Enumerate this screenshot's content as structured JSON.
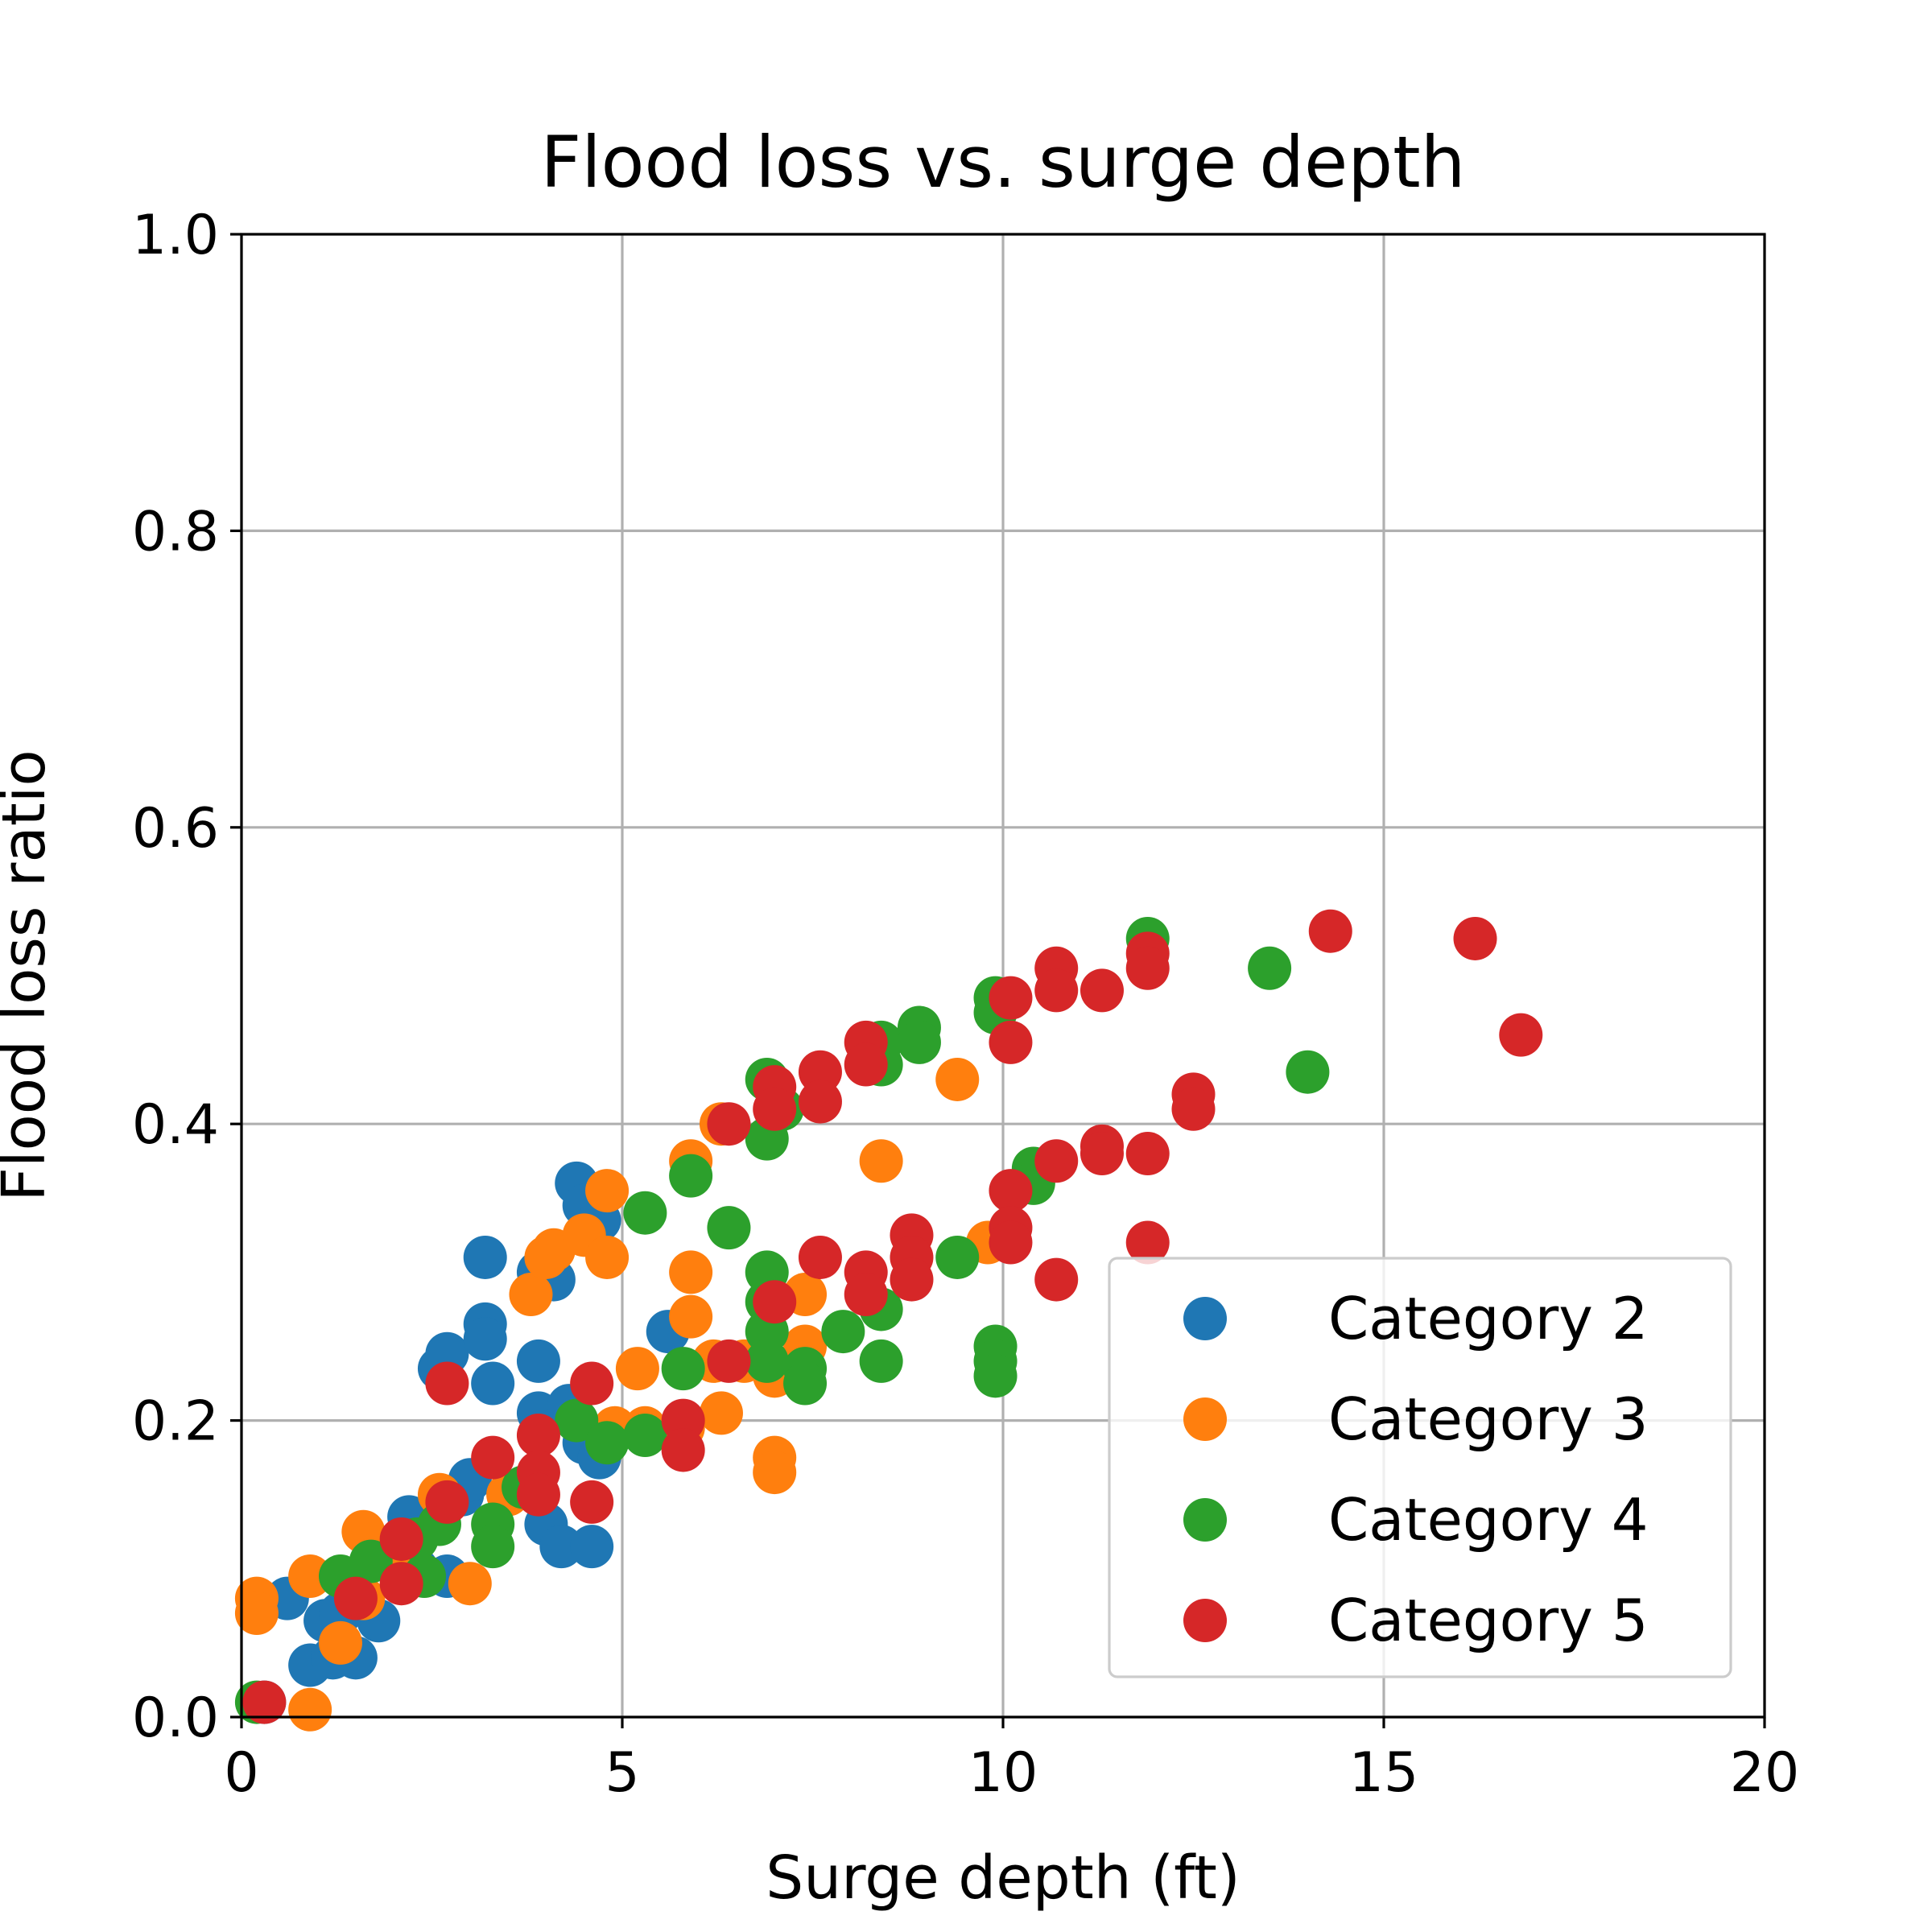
{
  "chart_data": {
    "type": "scatter",
    "title": "Flood loss vs. surge depth",
    "xlabel": "Surge depth (ft)",
    "ylabel": "Flood loss ratio",
    "xlim": [
      0,
      20
    ],
    "ylim": [
      0,
      1
    ],
    "xticks": [
      0,
      5,
      10,
      15,
      20
    ],
    "yticks": [
      0.0,
      0.2,
      0.4,
      0.6,
      0.8,
      1.0
    ],
    "xtick_labels": [
      "0",
      "5",
      "10",
      "15",
      "20"
    ],
    "ytick_labels": [
      "0.0",
      "0.2",
      "0.4",
      "0.6",
      "0.8",
      "1.0"
    ],
    "grid": true,
    "legend_position": "bottom-right",
    "series": [
      {
        "name": "Category 2",
        "color": "#1f77b4",
        "points": [
          [
            0.3,
            0.01
          ],
          [
            0.6,
            0.08
          ],
          [
            0.9,
            0.035
          ],
          [
            1.1,
            0.065
          ],
          [
            1.2,
            0.04
          ],
          [
            1.3,
            0.07
          ],
          [
            1.5,
            0.04
          ],
          [
            1.8,
            0.065
          ],
          [
            2.2,
            0.135
          ],
          [
            2.3,
            0.1
          ],
          [
            2.6,
            0.235
          ],
          [
            2.7,
            0.245
          ],
          [
            2.7,
            0.095
          ],
          [
            2.9,
            0.15
          ],
          [
            3.0,
            0.16
          ],
          [
            3.2,
            0.31
          ],
          [
            3.2,
            0.265
          ],
          [
            3.2,
            0.255
          ],
          [
            3.3,
            0.225
          ],
          [
            3.9,
            0.3
          ],
          [
            3.9,
            0.24
          ],
          [
            3.9,
            0.205
          ],
          [
            4.0,
            0.13
          ],
          [
            4.1,
            0.295
          ],
          [
            4.2,
            0.115
          ],
          [
            4.3,
            0.21
          ],
          [
            4.4,
            0.36
          ],
          [
            4.5,
            0.345
          ],
          [
            4.5,
            0.185
          ],
          [
            4.7,
            0.335
          ],
          [
            4.7,
            0.175
          ],
          [
            4.6,
            0.115
          ],
          [
            5.6,
            0.26
          ]
        ]
      },
      {
        "name": "Category 3",
        "color": "#ff7f0e",
        "points": [
          [
            0.2,
            0.08
          ],
          [
            0.2,
            0.07
          ],
          [
            0.9,
            0.095
          ],
          [
            0.9,
            0.005
          ],
          [
            1.3,
            0.05
          ],
          [
            1.6,
            0.125
          ],
          [
            1.6,
            0.08
          ],
          [
            2.0,
            0.11
          ],
          [
            2.6,
            0.15
          ],
          [
            3.0,
            0.09
          ],
          [
            3.5,
            0.15
          ],
          [
            3.8,
            0.285
          ],
          [
            4.0,
            0.31
          ],
          [
            4.1,
            0.315
          ],
          [
            4.5,
            0.325
          ],
          [
            4.8,
            0.355
          ],
          [
            4.8,
            0.31
          ],
          [
            4.9,
            0.195
          ],
          [
            5.2,
            0.235
          ],
          [
            5.3,
            0.195
          ],
          [
            5.8,
            0.195
          ],
          [
            5.9,
            0.375
          ],
          [
            5.9,
            0.3
          ],
          [
            5.9,
            0.27
          ],
          [
            6.2,
            0.24
          ],
          [
            6.3,
            0.205
          ],
          [
            6.3,
            0.4
          ],
          [
            6.6,
            0.24
          ],
          [
            7.0,
            0.23
          ],
          [
            7.0,
            0.175
          ],
          [
            7.0,
            0.165
          ],
          [
            7.4,
            0.285
          ],
          [
            7.4,
            0.25
          ],
          [
            8.4,
            0.375
          ],
          [
            9.4,
            0.43
          ],
          [
            9.8,
            0.32
          ]
        ]
      },
      {
        "name": "Category 4",
        "color": "#2ca02c",
        "points": [
          [
            0.2,
            0.01
          ],
          [
            1.3,
            0.095
          ],
          [
            1.7,
            0.105
          ],
          [
            2.3,
            0.12
          ],
          [
            2.4,
            0.095
          ],
          [
            2.6,
            0.13
          ],
          [
            3.3,
            0.13
          ],
          [
            3.3,
            0.115
          ],
          [
            3.7,
            0.155
          ],
          [
            4.4,
            0.2
          ],
          [
            4.8,
            0.185
          ],
          [
            5.3,
            0.19
          ],
          [
            5.3,
            0.34
          ],
          [
            5.8,
            0.235
          ],
          [
            5.9,
            0.365
          ],
          [
            6.4,
            0.33
          ],
          [
            6.9,
            0.3
          ],
          [
            6.9,
            0.28
          ],
          [
            6.9,
            0.26
          ],
          [
            6.9,
            0.24
          ],
          [
            6.9,
            0.43
          ],
          [
            6.9,
            0.39
          ],
          [
            7.1,
            0.41
          ],
          [
            7.4,
            0.235
          ],
          [
            7.4,
            0.225
          ],
          [
            7.9,
            0.26
          ],
          [
            8.4,
            0.455
          ],
          [
            8.4,
            0.44
          ],
          [
            8.4,
            0.275
          ],
          [
            8.4,
            0.24
          ],
          [
            8.9,
            0.465
          ],
          [
            8.9,
            0.455
          ],
          [
            9.4,
            0.31
          ],
          [
            9.9,
            0.485
          ],
          [
            9.9,
            0.475
          ],
          [
            9.9,
            0.25
          ],
          [
            9.9,
            0.24
          ],
          [
            9.9,
            0.23
          ],
          [
            10.4,
            0.37
          ],
          [
            10.4,
            0.36
          ],
          [
            11.9,
            0.525
          ],
          [
            13.5,
            0.505
          ],
          [
            14.0,
            0.435
          ]
        ]
      },
      {
        "name": "Category 5",
        "color": "#d62728",
        "points": [
          [
            0.3,
            0.01
          ],
          [
            1.5,
            0.08
          ],
          [
            2.1,
            0.12
          ],
          [
            2.1,
            0.09
          ],
          [
            2.7,
            0.225
          ],
          [
            2.7,
            0.145
          ],
          [
            3.3,
            0.175
          ],
          [
            3.9,
            0.19
          ],
          [
            3.9,
            0.165
          ],
          [
            3.9,
            0.15
          ],
          [
            4.6,
            0.225
          ],
          [
            4.6,
            0.145
          ],
          [
            5.8,
            0.2
          ],
          [
            5.8,
            0.18
          ],
          [
            6.4,
            0.4
          ],
          [
            6.4,
            0.24
          ],
          [
            7.0,
            0.425
          ],
          [
            7.0,
            0.41
          ],
          [
            7.0,
            0.28
          ],
          [
            7.6,
            0.435
          ],
          [
            7.6,
            0.415
          ],
          [
            7.6,
            0.31
          ],
          [
            8.2,
            0.455
          ],
          [
            8.2,
            0.44
          ],
          [
            8.2,
            0.3
          ],
          [
            8.2,
            0.285
          ],
          [
            8.8,
            0.325
          ],
          [
            8.8,
            0.31
          ],
          [
            8.8,
            0.295
          ],
          [
            10.1,
            0.485
          ],
          [
            10.1,
            0.455
          ],
          [
            10.1,
            0.355
          ],
          [
            10.1,
            0.33
          ],
          [
            10.1,
            0.32
          ],
          [
            10.7,
            0.505
          ],
          [
            10.7,
            0.49
          ],
          [
            10.7,
            0.375
          ],
          [
            10.7,
            0.295
          ],
          [
            11.3,
            0.49
          ],
          [
            11.3,
            0.385
          ],
          [
            11.3,
            0.38
          ],
          [
            11.9,
            0.515
          ],
          [
            11.9,
            0.505
          ],
          [
            11.9,
            0.38
          ],
          [
            11.9,
            0.32
          ],
          [
            12.5,
            0.42
          ],
          [
            12.5,
            0.41
          ],
          [
            14.3,
            0.53
          ],
          [
            16.2,
            0.525
          ],
          [
            16.8,
            0.46
          ]
        ]
      }
    ]
  }
}
